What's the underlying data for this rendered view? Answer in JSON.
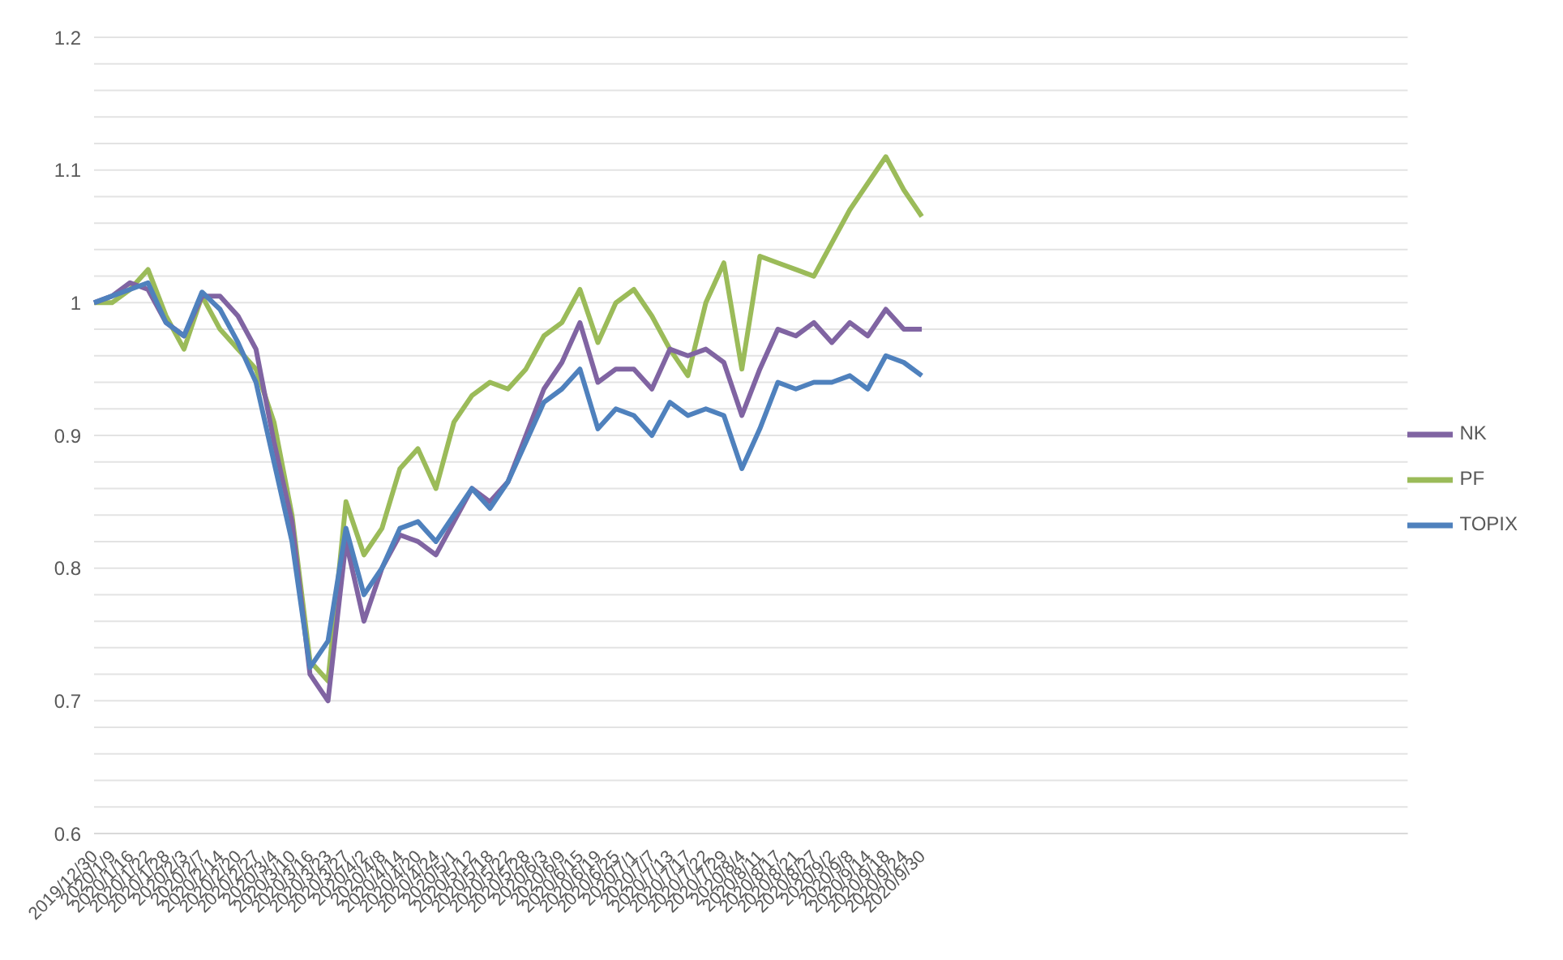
{
  "chart_data": {
    "type": "line",
    "categories": [
      "2019/12/30",
      "2020/1/9",
      "2020/1/16",
      "2020/1/22",
      "2020/1/28",
      "2020/2/3",
      "2020/2/7",
      "2020/2/14",
      "2020/2/20",
      "2020/2/27",
      "2020/3/4",
      "2020/3/10",
      "2020/3/16",
      "2020/3/23",
      "2020/3/27",
      "2020/4/2",
      "2020/4/8",
      "2020/4/14",
      "2020/4/20",
      "2020/4/24",
      "2020/5/1",
      "2020/5/12",
      "2020/5/18",
      "2020/5/22",
      "2020/5/28",
      "2020/6/3",
      "2020/6/9",
      "2020/6/15",
      "2020/6/19",
      "2020/6/25",
      "2020/7/1",
      "2020/7/7",
      "2020/7/13",
      "2020/7/17",
      "2020/7/22",
      "2020/7/29",
      "2020/8/4",
      "2020/8/11",
      "2020/8/17",
      "2020/8/21",
      "2020/8/27",
      "2020/9/2",
      "2020/9/8",
      "2020/9/14",
      "2020/9/18",
      "2020/9/24",
      "2020/9/30",
      null,
      null,
      null,
      null,
      null,
      null,
      null,
      null,
      null,
      null,
      null,
      null,
      null,
      null,
      null,
      null,
      null,
      null,
      null,
      null,
      null,
      null,
      null,
      null,
      null,
      null,
      null
    ],
    "series": [
      {
        "name": "PF",
        "color": "#9bbb59",
        "values": [
          1.0,
          1.0,
          1.01,
          1.025,
          0.99,
          0.965,
          1.005,
          0.98,
          0.965,
          0.95,
          0.91,
          0.84,
          0.73,
          0.715,
          0.85,
          0.81,
          0.83,
          0.875,
          0.89,
          0.86,
          0.91,
          0.93,
          0.94,
          0.935,
          0.95,
          0.975,
          0.985,
          1.01,
          0.97,
          1.0,
          1.01,
          0.99,
          0.965,
          0.945,
          1.0,
          1.03,
          0.95,
          1.035,
          1.03,
          1.025,
          1.02,
          1.045,
          1.07,
          1.09,
          1.11,
          1.085,
          1.065,
          null,
          null,
          null,
          null,
          null,
          null,
          null,
          null,
          null,
          null,
          null,
          null,
          null,
          null,
          null,
          null,
          null,
          null,
          null,
          null,
          null,
          null,
          null,
          null,
          null,
          null,
          null
        ]
      },
      {
        "name": "NK",
        "color": "#8064a2",
        "values": [
          1.0,
          1.005,
          1.015,
          1.01,
          0.985,
          0.975,
          1.005,
          1.005,
          0.99,
          0.965,
          0.895,
          0.835,
          0.72,
          0.7,
          0.82,
          0.76,
          0.8,
          0.825,
          0.82,
          0.81,
          0.835,
          0.86,
          0.85,
          0.865,
          0.9,
          0.935,
          0.955,
          0.985,
          0.94,
          0.95,
          0.95,
          0.935,
          0.965,
          0.96,
          0.965,
          0.955,
          0.915,
          0.95,
          0.98,
          0.975,
          0.985,
          0.97,
          0.985,
          0.975,
          0.995,
          0.98,
          0.98,
          null,
          null,
          null,
          null,
          null,
          null,
          null,
          null,
          null,
          null,
          null,
          null,
          null,
          null,
          null,
          null,
          null,
          null,
          null,
          null,
          null,
          null,
          null,
          null,
          null,
          null,
          null
        ]
      },
      {
        "name": "TOPIX",
        "color": "#4f81bd",
        "values": [
          1.0,
          1.005,
          1.01,
          1.015,
          0.985,
          0.975,
          1.008,
          0.995,
          0.97,
          0.94,
          0.88,
          0.82,
          0.725,
          0.745,
          0.83,
          0.78,
          0.8,
          0.83,
          0.835,
          0.82,
          0.84,
          0.86,
          0.845,
          0.865,
          0.895,
          0.925,
          0.935,
          0.95,
          0.905,
          0.92,
          0.915,
          0.9,
          0.925,
          0.915,
          0.92,
          0.915,
          0.875,
          0.905,
          0.94,
          0.935,
          0.94,
          0.94,
          0.945,
          0.935,
          0.96,
          0.955,
          0.945,
          null,
          null,
          null,
          null,
          null,
          null,
          null,
          null,
          null,
          null,
          null,
          null,
          null,
          null,
          null,
          null,
          null,
          null,
          null,
          null,
          null,
          null,
          null,
          null,
          null,
          null,
          null
        ]
      }
    ],
    "ylim": [
      0.6,
      1.2
    ],
    "yticks": [
      0.6,
      {
        "value": 0.62,
        "label": null
      },
      {
        "value": 0.64,
        "label": null
      },
      {
        "value": 0.66,
        "label": null
      },
      {
        "value": 0.68,
        "label": null
      },
      0.7,
      {
        "value": 0.72,
        "label": null
      },
      {
        "value": 0.74,
        "label": null
      },
      {
        "value": 0.76,
        "label": null
      },
      {
        "value": 0.78,
        "label": null
      },
      0.8,
      {
        "value": 0.82,
        "label": null
      },
      {
        "value": 0.84,
        "label": null
      },
      {
        "value": 0.86,
        "label": null
      },
      {
        "value": 0.88,
        "label": null
      },
      0.9,
      {
        "value": 0.92,
        "label": null
      },
      {
        "value": 0.94,
        "label": null
      },
      {
        "value": 0.96,
        "label": null
      },
      {
        "value": 0.98,
        "label": null
      },
      {
        "value": 1,
        "label": "1"
      },
      {
        "value": 1.02,
        "label": null
      },
      {
        "value": 1.04,
        "label": null
      },
      {
        "value": 1.06,
        "label": null
      },
      {
        "value": 1.08,
        "label": null
      },
      1.1,
      {
        "value": 1.12,
        "label": null
      },
      {
        "value": 1.14,
        "label": null
      },
      {
        "value": 1.16,
        "label": null
      },
      {
        "value": 1.18,
        "label": null
      },
      1.2
    ],
    "grid": "y",
    "legend": "right",
    "marker": "none",
    "line_style": "solid"
  }
}
